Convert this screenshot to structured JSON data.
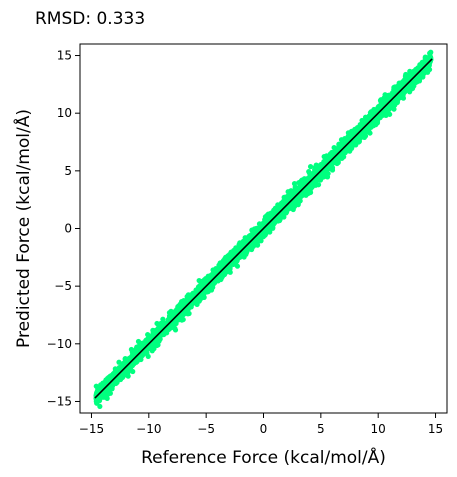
{
  "chart_data": {
    "type": "scatter",
    "title": "RMSD: 0.333",
    "xlabel": "Reference Force (kcal/mol/Å)",
    "ylabel": "Predicted Force (kcal/mol/Å)",
    "xlim": [
      -16.0,
      16.0
    ],
    "ylim": [
      -16.0,
      16.0
    ],
    "xticks": [
      -15,
      -10,
      -5,
      0,
      5,
      10,
      15
    ],
    "yticks": [
      -15,
      -10,
      -5,
      0,
      5,
      10,
      15
    ],
    "xtick_labels": [
      "−15",
      "−10",
      "−5",
      "0",
      "5",
      "10",
      "15"
    ],
    "ytick_labels": [
      "−15",
      "−10",
      "−5",
      "0",
      "5",
      "10",
      "15"
    ],
    "grid": false,
    "point_color": "#00FF7F",
    "line_color": "#000000",
    "reference_line": {
      "x": [
        -14.7,
        14.7
      ],
      "y": [
        -14.7,
        14.7
      ]
    },
    "series": [
      {
        "x": [
          -14.6,
          -14.2,
          -13.8,
          -13.5,
          -13.1,
          -12.7,
          -12.3,
          -11.9,
          -11.5,
          -11.1,
          -10.7,
          -10.3,
          -9.9,
          -9.5,
          -9.1,
          -8.7,
          -8.3,
          -7.9,
          -7.5,
          -7.1,
          -6.7,
          -6.3,
          -5.9,
          -5.5,
          -5.1,
          -4.7,
          -4.3,
          -3.9,
          -3.5,
          -3.1,
          -2.7,
          -2.3,
          -1.9,
          -1.5,
          -1.1,
          -0.7,
          -0.3,
          0.1,
          0.5,
          0.9,
          1.3,
          1.7,
          2.1,
          2.5,
          2.9,
          3.3,
          3.7,
          4.1,
          4.5,
          4.9,
          5.3,
          5.7,
          6.1,
          6.5,
          6.9,
          7.3,
          7.7,
          8.1,
          8.5,
          8.9,
          9.3,
          9.7,
          10.1,
          10.5,
          10.9,
          11.3,
          11.7,
          12.1,
          12.5,
          12.9,
          13.3,
          13.7,
          14.1,
          14.5,
          -12.6,
          -11.8,
          -10.9,
          -9.7,
          -8.2,
          -7.0,
          -5.8,
          -4.4,
          -2.9,
          -1.6,
          0.4,
          1.8,
          3.2,
          4.6,
          6.0,
          7.4,
          8.8,
          10.2,
          11.0,
          12.4,
          13.6,
          -13.2,
          -10.1,
          -6.6,
          -3.3,
          2.7,
          5.5,
          8.3,
          11.6,
          12.2,
          10.6,
          -11.4,
          -9.2,
          6.8,
          4.0
        ],
        "y": [
          -14.5,
          -14.3,
          -13.4,
          -13.9,
          -12.6,
          -13.1,
          -11.9,
          -12.5,
          -11.1,
          -11.6,
          -10.2,
          -10.8,
          -9.5,
          -9.9,
          -8.6,
          -9.2,
          -7.9,
          -8.4,
          -7.0,
          -7.6,
          -6.3,
          -6.8,
          -5.5,
          -6.0,
          -4.6,
          -5.1,
          -3.9,
          -4.4,
          -3.0,
          -3.6,
          -2.3,
          -2.8,
          -1.5,
          -2.0,
          -0.6,
          -1.2,
          0.1,
          -0.4,
          1.0,
          0.4,
          1.8,
          1.2,
          2.6,
          2.0,
          3.4,
          2.8,
          4.2,
          3.6,
          5.0,
          4.4,
          5.8,
          5.2,
          6.6,
          6.0,
          7.4,
          6.8,
          8.2,
          7.6,
          9.0,
          8.4,
          9.8,
          9.2,
          10.6,
          10.0,
          11.4,
          10.8,
          12.2,
          11.6,
          13.0,
          12.4,
          13.8,
          13.2,
          14.6,
          14.9,
          -11.6,
          -12.8,
          -9.8,
          -10.6,
          -7.3,
          -7.9,
          -6.5,
          -3.6,
          -3.8,
          -0.8,
          -0.3,
          2.7,
          2.4,
          5.5,
          5.1,
          8.3,
          7.9,
          11.1,
          9.9,
          13.2,
          12.8,
          -13.9,
          -9.2,
          -7.4,
          -2.5,
          1.9,
          6.3,
          7.5,
          12.3,
          11.3,
          11.6,
          -12.4,
          -10.1,
          7.7,
          3.1
        ]
      }
    ]
  }
}
